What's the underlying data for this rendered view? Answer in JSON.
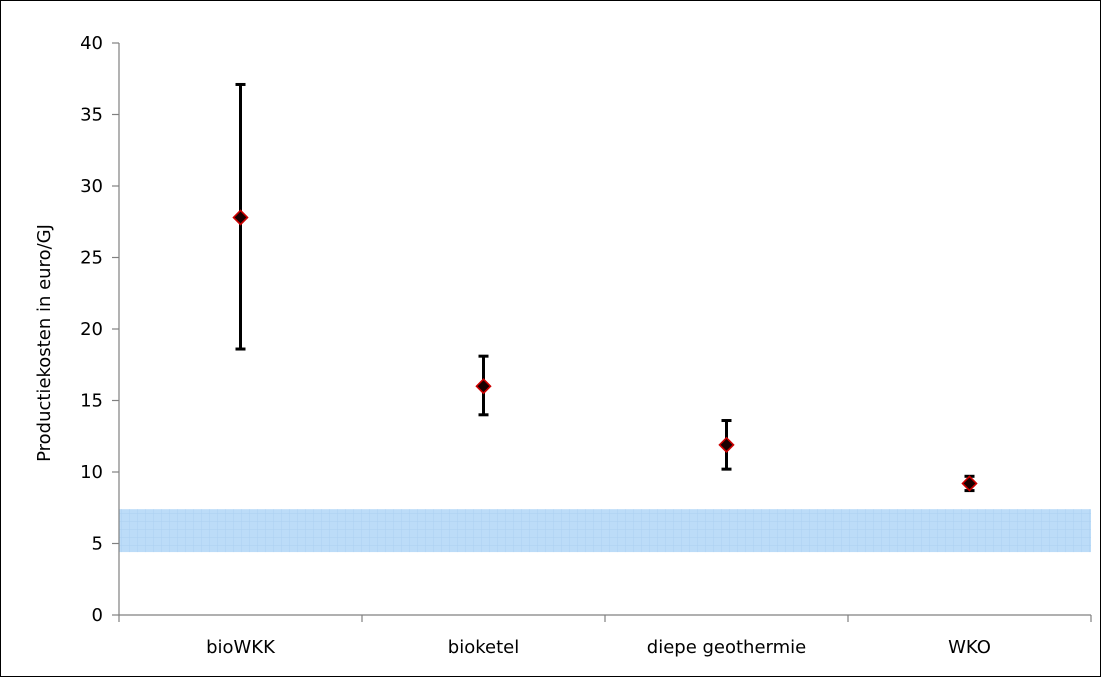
{
  "chart_data": {
    "type": "scatter",
    "ylabel": "Productiekosten in euro/GJ",
    "xlabel": "",
    "ylim": [
      0,
      40
    ],
    "yticks": [
      0,
      5,
      10,
      15,
      20,
      25,
      30,
      35,
      40
    ],
    "grid": false,
    "categories": [
      "bioWKK",
      "bioketel",
      "diepe geothermie",
      "WKO"
    ],
    "values": [
      27.8,
      16.0,
      11.9,
      9.2
    ],
    "error_low": [
      18.6,
      14.0,
      10.2,
      8.7
    ],
    "error_high": [
      37.1,
      18.1,
      13.6,
      9.7
    ],
    "reference_band": {
      "from": 4.4,
      "to": 7.4,
      "color": "#bcdcf8"
    },
    "colors": {
      "marker_fill": "#1a0000",
      "marker_edge": "#cc0000",
      "error_bar": "#000000",
      "axis": "#808080"
    }
  }
}
